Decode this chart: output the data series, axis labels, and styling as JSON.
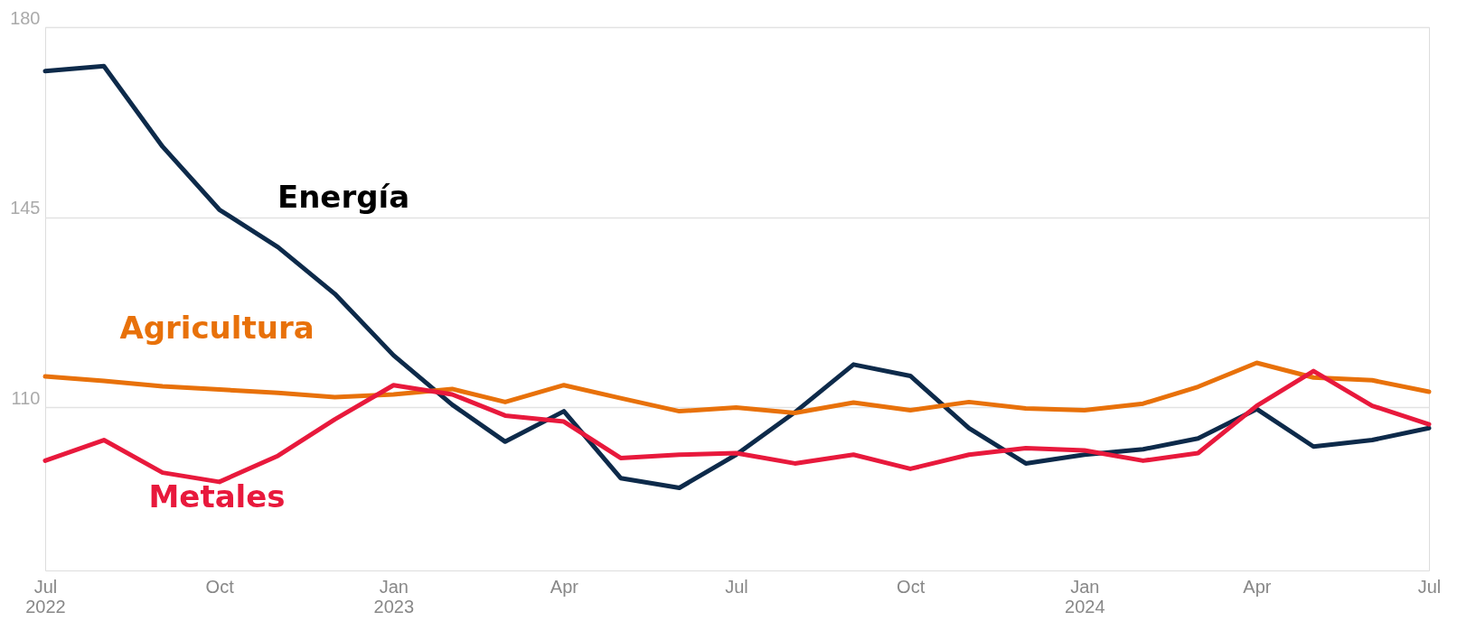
{
  "chart_data": {
    "type": "line",
    "x": [
      "2022-07",
      "2022-08",
      "2022-09",
      "2022-10",
      "2022-11",
      "2022-12",
      "2023-01",
      "2023-02",
      "2023-03",
      "2023-04",
      "2023-05",
      "2023-06",
      "2023-07",
      "2023-08",
      "2023-09",
      "2023-10",
      "2023-11",
      "2023-12",
      "2024-01",
      "2024-02",
      "2024-03",
      "2024-04",
      "2024-05",
      "2024-06",
      "2024-07"
    ],
    "series": [
      {
        "name": "Energía",
        "color": "#0d2a4a",
        "values": [
          171.9,
          172.8,
          158.0,
          146.4,
          139.5,
          130.9,
          119.6,
          110.5,
          103.7,
          109.3,
          97.0,
          95.2,
          101.3,
          109.1,
          117.9,
          115.8,
          106.2,
          99.7,
          101.3,
          102.3,
          104.3,
          109.7,
          102.8,
          104.0,
          106.2
        ]
      },
      {
        "name": "Agricultura",
        "color": "#e8710a",
        "values": [
          115.7,
          114.9,
          113.9,
          113.3,
          112.7,
          111.9,
          112.4,
          113.4,
          111.0,
          114.1,
          111.7,
          109.3,
          110.0,
          109.0,
          110.9,
          109.5,
          111.0,
          109.8,
          109.5,
          110.7,
          113.8,
          118.2,
          115.5,
          115.0,
          112.9
        ]
      },
      {
        "name": "Metales",
        "color": "#e8193c",
        "values": [
          100.2,
          104.0,
          98.0,
          96.3,
          101.1,
          107.8,
          114.1,
          112.4,
          108.5,
          107.4,
          100.7,
          101.3,
          101.6,
          99.7,
          101.3,
          98.7,
          101.3,
          102.5,
          102.1,
          100.2,
          101.6,
          110.3,
          116.7,
          110.3,
          106.9
        ]
      }
    ],
    "xlim": [
      "2022-07",
      "2024-07"
    ],
    "xticks": [
      {
        "value": "2022-07",
        "label": "Jul 2022"
      },
      {
        "value": "2022-10",
        "label": "Oct"
      },
      {
        "value": "2023-01",
        "label": "Jan 2023"
      },
      {
        "value": "2023-04",
        "label": "Apr"
      },
      {
        "value": "2023-07",
        "label": "Jul"
      },
      {
        "value": "2023-10",
        "label": "Oct"
      },
      {
        "value": "2024-01",
        "label": "Jan 2024"
      },
      {
        "value": "2024-04",
        "label": "Apr"
      },
      {
        "value": "2024-07",
        "label": "Jul"
      }
    ],
    "ylim": [
      80,
      180
    ],
    "yticks": [
      110,
      145,
      180
    ],
    "grid": "y",
    "legend": false,
    "marker": "none",
    "line_style": "solid"
  }
}
